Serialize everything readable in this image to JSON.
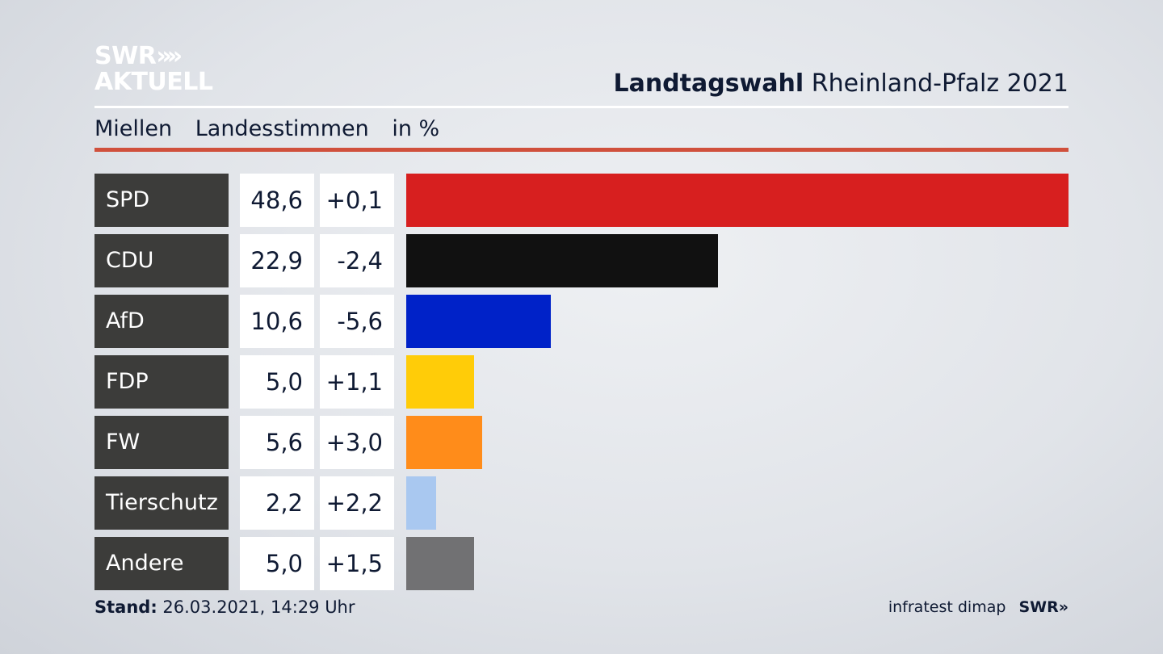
{
  "branding": {
    "logo_line1": "SWR",
    "logo_line2": "AKTUELL",
    "logo_chevrons": "»",
    "footer_source": "infratest dimap",
    "footer_logo": "SWR»"
  },
  "header": {
    "title_bold": "Landtagswahl",
    "title_rest": "Rheinland-Pfalz 2021"
  },
  "subtitle": {
    "place": "Miellen",
    "type": "Landesstimmen",
    "unit": "in %"
  },
  "footer": {
    "stand_label": "Stand:",
    "stand_value": "26.03.2021, 14:29 Uhr"
  },
  "chart_data": {
    "type": "bar",
    "orientation": "horizontal",
    "categories": [
      "SPD",
      "CDU",
      "AfD",
      "FDP",
      "FW",
      "Tierschutz",
      "Andere"
    ],
    "values": [
      48.6,
      22.9,
      10.6,
      5.0,
      5.6,
      2.2,
      5.0
    ],
    "value_labels": [
      "48,6",
      "22,9",
      "10,6",
      "5,0",
      "5,6",
      "2,2",
      "5,0"
    ],
    "change_labels": [
      "+0,1",
      "-2,4",
      "-5,6",
      "+1,1",
      "+3,0",
      "+2,2",
      "+1,5"
    ],
    "colors": [
      "#d71f1f",
      "#111111",
      "#0022c8",
      "#ffcc08",
      "#ff8c1a",
      "#a9c8f0",
      "#717173"
    ],
    "xlim": [
      0,
      48.6
    ],
    "grid": false,
    "legend": "none"
  }
}
